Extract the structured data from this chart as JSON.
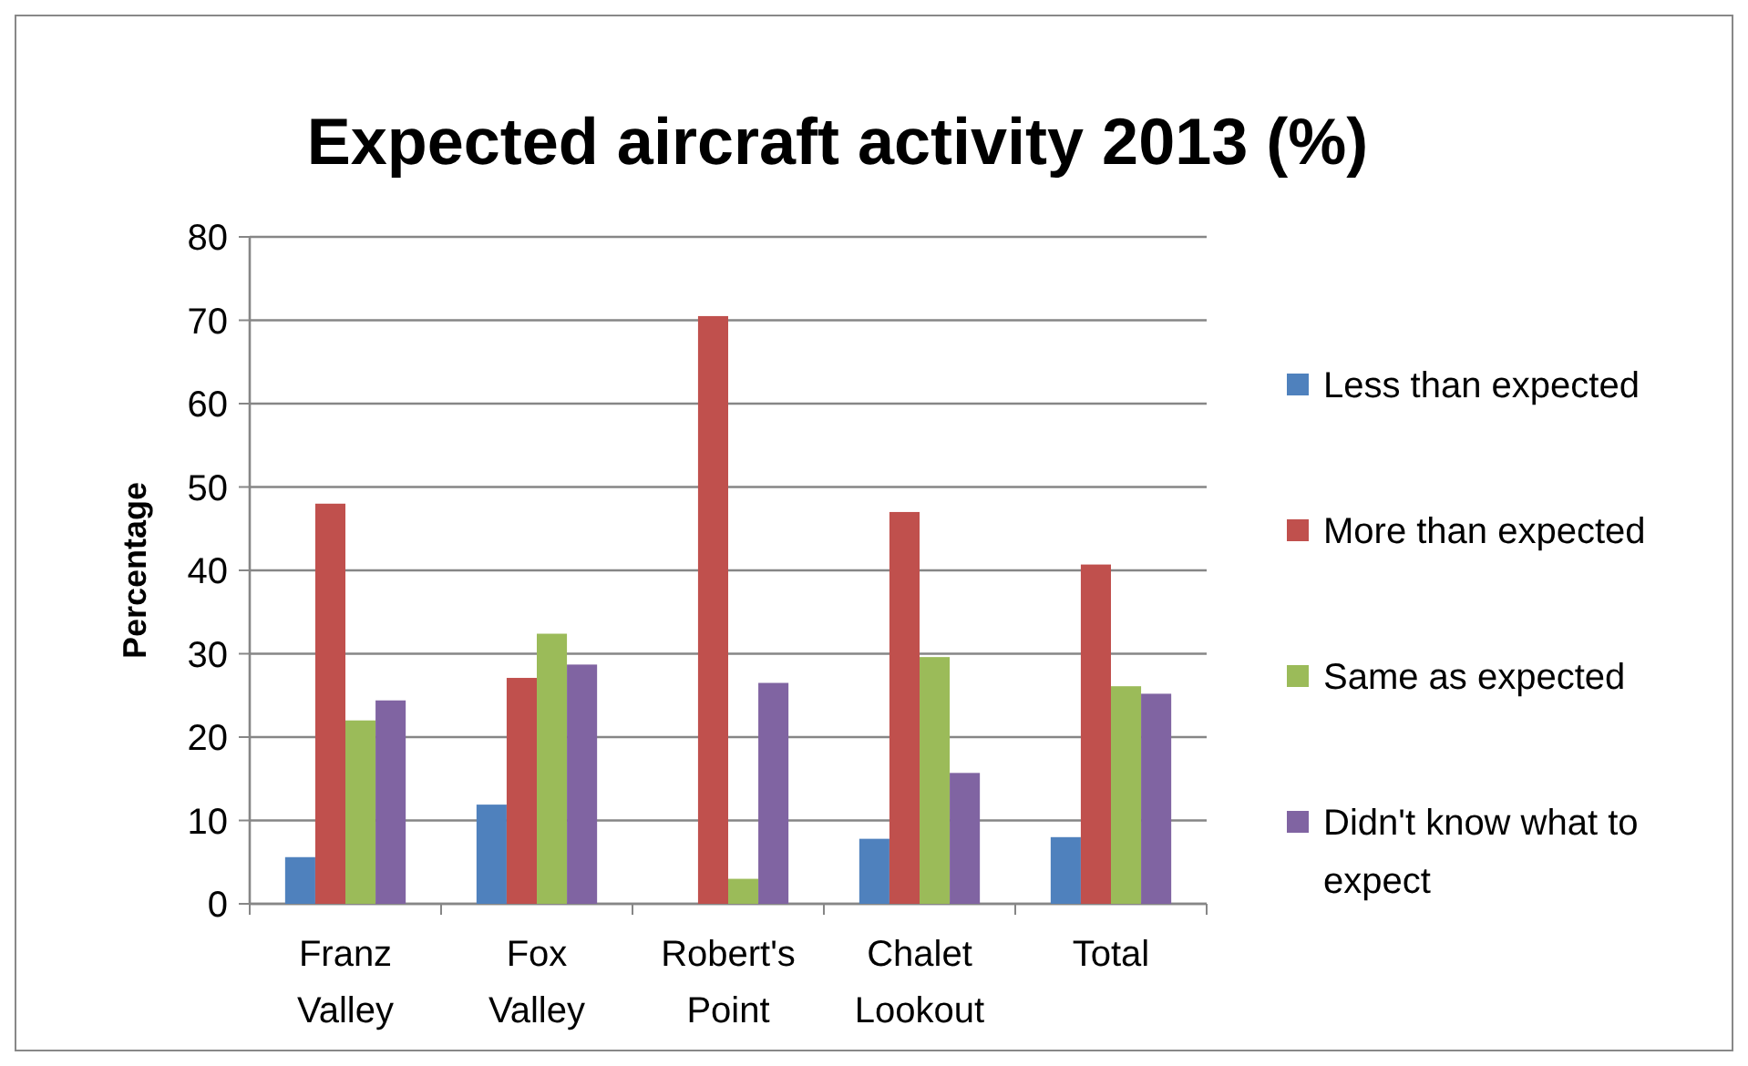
{
  "chart_data": {
    "type": "bar",
    "title": "Expected aircraft activity 2013 (%)",
    "ylabel": "Percentage",
    "categories": [
      "Franz Valley",
      "Fox Valley",
      "Robert's Point",
      "Chalet Lookout",
      "Total"
    ],
    "series": [
      {
        "name": "Less than expected",
        "color": "#4f81bd",
        "values": [
          5.6,
          11.9,
          0,
          7.8,
          8.0
        ]
      },
      {
        "name": "More than expected",
        "color": "#c0504d",
        "values": [
          48,
          27.1,
          70.5,
          47,
          40.7
        ]
      },
      {
        "name": "Same as expected",
        "color": "#9bbb59",
        "values": [
          22,
          32.4,
          3.0,
          29.6,
          26.1
        ]
      },
      {
        "name": "Didn't know what to expect",
        "color": "#8064a2",
        "values": [
          24.4,
          28.7,
          26.5,
          15.7,
          25.2
        ]
      }
    ],
    "ylim": [
      0,
      80
    ],
    "yticks": [
      0,
      10,
      20,
      30,
      40,
      50,
      60,
      70,
      80
    ],
    "grid": "y",
    "legend": "right"
  }
}
